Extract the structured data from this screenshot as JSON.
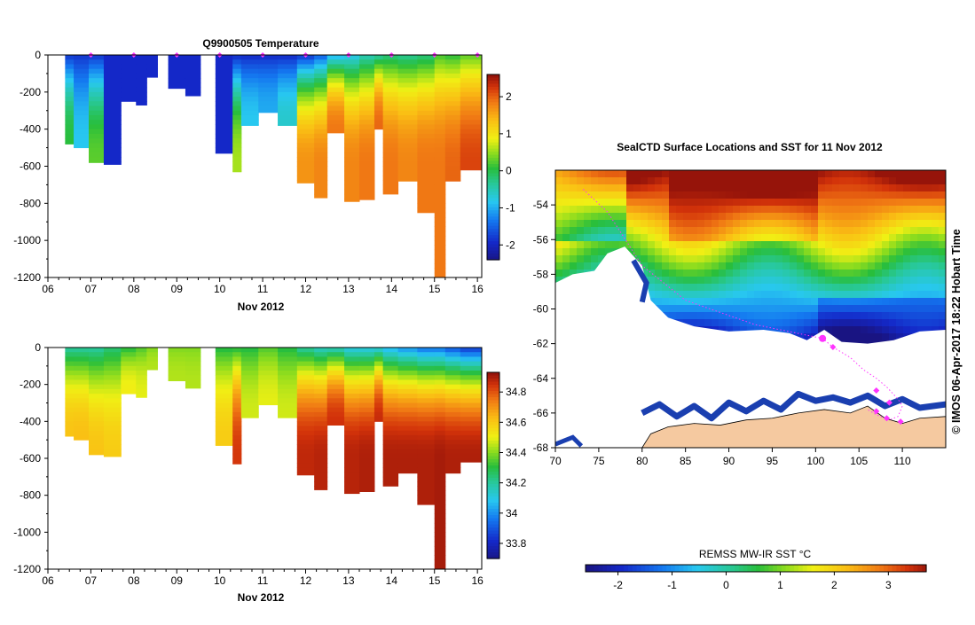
{
  "colors": {
    "land": "#f5c9a0",
    "axis": "#000000",
    "track": "#ff33ff"
  },
  "chart_data": [
    {
      "type": "heatmap",
      "title": "Q9900505  Temperature",
      "xlabel": "Nov 2012",
      "ylabel": "",
      "x_ticks": [
        "06",
        "07",
        "08",
        "09",
        "10",
        "11",
        "12",
        "13",
        "14",
        "15",
        "16"
      ],
      "y_ticks": [
        "0",
        "-200",
        "-400",
        "-600",
        "-800",
        "-1000",
        "-1200"
      ],
      "xlim": [
        6,
        16.1
      ],
      "ylim": [
        -1200,
        0
      ],
      "colorbar": {
        "ticks": [
          "-2",
          "-1",
          "0",
          "1",
          "2"
        ],
        "range": [
          -2.4,
          2.6
        ]
      },
      "profile_markers": [
        7,
        8,
        9,
        10,
        11,
        12,
        13,
        14,
        15,
        16
      ],
      "profiles": [
        {
          "t0": 6.4,
          "t1": 6.6,
          "depth": 480,
          "surface": -1.8,
          "deep": 0.1
        },
        {
          "t0": 6.6,
          "t1": 6.95,
          "depth": 500,
          "surface": -1.8,
          "deep": -0.8
        },
        {
          "t0": 6.95,
          "t1": 7.3,
          "depth": 580,
          "surface": -1.8,
          "deep": 0.3
        },
        {
          "t0": 7.3,
          "t1": 7.7,
          "depth": 590,
          "surface": -1.9,
          "deep": -1.9
        },
        {
          "t0": 7.7,
          "t1": 8.05,
          "depth": 250,
          "surface": -1.9,
          "deep": -1.9
        },
        {
          "t0": 8.05,
          "t1": 8.3,
          "depth": 270,
          "surface": -1.9,
          "deep": -1.9
        },
        {
          "t0": 8.3,
          "t1": 8.55,
          "depth": 120,
          "surface": -1.9,
          "deep": -1.9
        },
        {
          "t0": 8.8,
          "t1": 9.2,
          "depth": 180,
          "surface": -1.9,
          "deep": -1.9
        },
        {
          "t0": 9.2,
          "t1": 9.55,
          "depth": 220,
          "surface": -1.9,
          "deep": -1.9
        },
        {
          "t0": 9.9,
          "t1": 10.3,
          "depth": 530,
          "surface": -1.9,
          "deep": -1.9
        },
        {
          "t0": 10.3,
          "t1": 10.5,
          "depth": 630,
          "surface": -1.9,
          "deep": 0.6
        },
        {
          "t0": 10.5,
          "t1": 10.9,
          "depth": 380,
          "surface": -1.9,
          "deep": -0.8
        },
        {
          "t0": 10.9,
          "t1": 11.35,
          "depth": 310,
          "surface": -1.9,
          "deep": -1.0
        },
        {
          "t0": 11.35,
          "t1": 11.8,
          "depth": 380,
          "surface": -1.9,
          "deep": -0.6
        },
        {
          "t0": 11.8,
          "t1": 12.2,
          "depth": 690,
          "surface": -1.8,
          "deep": 1.7
        },
        {
          "t0": 12.2,
          "t1": 12.5,
          "depth": 770,
          "surface": -1.5,
          "deep": 1.8
        },
        {
          "t0": 12.5,
          "t1": 12.9,
          "depth": 420,
          "surface": -1.0,
          "deep": 1.9
        },
        {
          "t0": 12.9,
          "t1": 13.25,
          "depth": 790,
          "surface": -0.8,
          "deep": 1.8
        },
        {
          "t0": 13.25,
          "t1": 13.6,
          "depth": 780,
          "surface": -0.5,
          "deep": 1.9
        },
        {
          "t0": 13.6,
          "t1": 13.8,
          "depth": 400,
          "surface": -0.4,
          "deep": 2.0
        },
        {
          "t0": 13.8,
          "t1": 14.15,
          "depth": 750,
          "surface": -0.2,
          "deep": 1.9
        },
        {
          "t0": 14.15,
          "t1": 14.6,
          "depth": 680,
          "surface": -0.3,
          "deep": 1.8
        },
        {
          "t0": 14.6,
          "t1": 15.0,
          "depth": 850,
          "surface": -0.2,
          "deep": 1.9
        },
        {
          "t0": 15.0,
          "t1": 15.25,
          "depth": 1200,
          "surface": 0.2,
          "deep": 1.9
        },
        {
          "t0": 15.25,
          "t1": 15.6,
          "depth": 680,
          "surface": 0.1,
          "deep": 2.0
        },
        {
          "t0": 15.6,
          "t1": 16.1,
          "depth": 620,
          "surface": 0.3,
          "deep": 2.2
        }
      ]
    },
    {
      "type": "heatmap",
      "title": "",
      "xlabel": "Nov 2012",
      "ylabel": "",
      "x_ticks": [
        "06",
        "07",
        "08",
        "09",
        "10",
        "11",
        "12",
        "13",
        "14",
        "15",
        "16"
      ],
      "y_ticks": [
        "0",
        "-200",
        "-400",
        "-600",
        "-800",
        "-1000",
        "-1200"
      ],
      "xlim": [
        6,
        16.1
      ],
      "ylim": [
        -1200,
        0
      ],
      "colorbar": {
        "ticks": [
          "33.8",
          "34",
          "34.2",
          "34.4",
          "34.6",
          "34.8"
        ],
        "range": [
          33.7,
          34.93
        ]
      },
      "profiles": [
        {
          "t0": 6.4,
          "t1": 6.6,
          "depth": 480,
          "surface": 34.2,
          "deep": 34.62
        },
        {
          "t0": 6.6,
          "t1": 6.95,
          "depth": 500,
          "surface": 34.2,
          "deep": 34.63
        },
        {
          "t0": 6.95,
          "t1": 7.3,
          "depth": 580,
          "surface": 34.2,
          "deep": 34.62
        },
        {
          "t0": 7.3,
          "t1": 7.7,
          "depth": 590,
          "surface": 34.25,
          "deep": 34.6
        },
        {
          "t0": 7.7,
          "t1": 8.05,
          "depth": 250,
          "surface": 34.3,
          "deep": 34.52
        },
        {
          "t0": 8.05,
          "t1": 8.3,
          "depth": 270,
          "surface": 34.35,
          "deep": 34.5
        },
        {
          "t0": 8.3,
          "t1": 8.55,
          "depth": 120,
          "surface": 34.4,
          "deep": 34.45
        },
        {
          "t0": 8.8,
          "t1": 9.2,
          "depth": 180,
          "surface": 34.4,
          "deep": 34.45
        },
        {
          "t0": 9.2,
          "t1": 9.55,
          "depth": 220,
          "surface": 34.4,
          "deep": 34.45
        },
        {
          "t0": 9.9,
          "t1": 10.3,
          "depth": 530,
          "surface": 34.3,
          "deep": 34.6
        },
        {
          "t0": 10.3,
          "t1": 10.5,
          "depth": 630,
          "surface": 34.3,
          "deep": 34.85
        },
        {
          "t0": 10.5,
          "t1": 10.9,
          "depth": 380,
          "surface": 34.3,
          "deep": 34.48
        },
        {
          "t0": 10.9,
          "t1": 11.35,
          "depth": 310,
          "surface": 34.35,
          "deep": 34.5
        },
        {
          "t0": 11.35,
          "t1": 11.8,
          "depth": 380,
          "surface": 34.3,
          "deep": 34.48
        },
        {
          "t0": 11.8,
          "t1": 12.2,
          "depth": 690,
          "surface": 34.2,
          "deep": 34.88
        },
        {
          "t0": 12.2,
          "t1": 12.5,
          "depth": 770,
          "surface": 34.15,
          "deep": 34.89
        },
        {
          "t0": 12.5,
          "t1": 12.9,
          "depth": 420,
          "surface": 34.15,
          "deep": 34.86
        },
        {
          "t0": 12.9,
          "t1": 13.25,
          "depth": 790,
          "surface": 34.1,
          "deep": 34.89
        },
        {
          "t0": 13.25,
          "t1": 13.6,
          "depth": 780,
          "surface": 34.1,
          "deep": 34.9
        },
        {
          "t0": 13.6,
          "t1": 13.8,
          "depth": 400,
          "surface": 34.1,
          "deep": 34.87
        },
        {
          "t0": 13.8,
          "t1": 14.15,
          "depth": 750,
          "surface": 34.05,
          "deep": 34.9
        },
        {
          "t0": 14.15,
          "t1": 14.6,
          "depth": 680,
          "surface": 34.0,
          "deep": 34.9
        },
        {
          "t0": 14.6,
          "t1": 15.0,
          "depth": 850,
          "surface": 33.95,
          "deep": 34.9
        },
        {
          "t0": 15.0,
          "t1": 15.25,
          "depth": 1200,
          "surface": 33.95,
          "deep": 34.91
        },
        {
          "t0": 15.25,
          "t1": 15.6,
          "depth": 680,
          "surface": 33.9,
          "deep": 34.9
        },
        {
          "t0": 15.6,
          "t1": 16.1,
          "depth": 620,
          "surface": 33.85,
          "deep": 34.9
        }
      ]
    },
    {
      "type": "heatmap",
      "title": "SealCTD Surface Locations and SST for 11 Nov 2012",
      "xlabel": "",
      "ylabel": "",
      "x_ticks": [
        "70",
        "75",
        "80",
        "85",
        "90",
        "95",
        "100",
        "105",
        "110"
      ],
      "y_ticks": [
        "-54",
        "-56",
        "-58",
        "-60",
        "-62",
        "-64",
        "-66",
        "-68"
      ],
      "xlim": [
        70,
        115
      ],
      "ylim": [
        -68,
        -52
      ],
      "side_label": "© IMOS 06-Apr-2017 18:22 Hobart Time",
      "colorbar": {
        "label": "REMSS MW-IR SST °C",
        "ticks": [
          "-2",
          "-1",
          "0",
          "1",
          "2",
          "3"
        ],
        "range": [
          -2.6,
          3.7
        ]
      },
      "track": [
        [
          73.2,
          -53.1
        ],
        [
          76,
          -54.4
        ],
        [
          80,
          -57.5
        ],
        [
          85,
          -59.5
        ],
        [
          93,
          -60.9
        ],
        [
          100.8,
          -61.7
        ],
        [
          102,
          -62.2
        ],
        [
          104,
          -62.8
        ],
        [
          105.5,
          -63.5
        ],
        [
          107,
          -64
        ],
        [
          108.2,
          -64.5
        ],
        [
          109.5,
          -65.2
        ],
        [
          110,
          -65.6
        ],
        [
          109.5,
          -66.2
        ],
        [
          108.5,
          -66.4
        ],
        [
          107,
          -66.1
        ],
        [
          106,
          -65.8
        ]
      ],
      "station_markers": [
        [
          100.8,
          -61.7
        ],
        [
          102.0,
          -62.2
        ],
        [
          107.0,
          -64.7
        ],
        [
          108.5,
          -65.4
        ],
        [
          107.0,
          -65.9
        ],
        [
          109.8,
          -66.5
        ],
        [
          108.2,
          -66.3
        ]
      ]
    }
  ]
}
